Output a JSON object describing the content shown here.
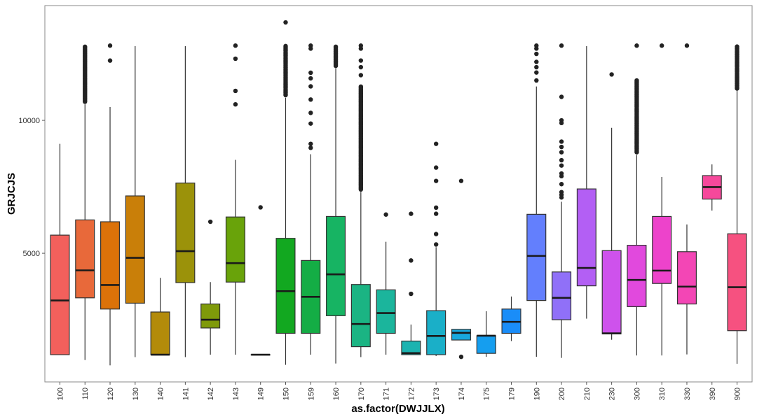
{
  "chart_data": {
    "type": "boxplot",
    "title": "",
    "xlabel": "as.factor(DWJJLX)",
    "ylabel": "GRJCJS",
    "ylim": [
      160,
      14317
    ],
    "yticks": [
      5000,
      10000
    ],
    "ytick_labels": [
      "5000",
      "10000"
    ],
    "grid": false,
    "legend": "none",
    "categories": [
      "100",
      "110",
      "120",
      "130",
      "140",
      "141",
      "142",
      "143",
      "149",
      "150",
      "159",
      "160",
      "170",
      "171",
      "172",
      "173",
      "174",
      "175",
      "179",
      "190",
      "200",
      "210",
      "230",
      "300",
      "310",
      "330",
      "390",
      "900"
    ],
    "colors": [
      "#F2605C",
      "#E8693A",
      "#DC7209",
      "#C97F09",
      "#B38B0A",
      "#9B920A",
      "#7F9A0A",
      "#69A30A",
      "#4DA80A",
      "#12A820",
      "#14AD45",
      "#17B463",
      "#1BB483",
      "#1BB59C",
      "#1CB3B0",
      "#1AAFC8",
      "#18A8DE",
      "#159EEF",
      "#1A8DF8",
      "#637FFD",
      "#9070F8",
      "#B35FF4",
      "#CE52EC",
      "#E149DD",
      "#ED43CB",
      "#F346B5",
      "#F6489B",
      "#F65180"
    ],
    "boxes": [
      {
        "low": 1185,
        "q1": 1185,
        "median": 3223,
        "q3": 5683,
        "high": 9116,
        "outliers": [],
        "outlier_ranges": []
      },
      {
        "low": 984,
        "q1": 3323,
        "median": 4357,
        "q3": 6255,
        "high": 10602,
        "outliers": [],
        "outlier_ranges": [
          [
            10700,
            12811
          ]
        ]
      },
      {
        "low": 783,
        "q1": 2902,
        "median": 3805,
        "q3": 6185,
        "high": 10502,
        "outliers": [
          12811,
          12248
        ],
        "outlier_ranges": []
      },
      {
        "low": 1094,
        "q1": 3122,
        "median": 4829,
        "q3": 7158,
        "high": 12791,
        "outliers": [],
        "outlier_ranges": []
      },
      {
        "low": 1185,
        "q1": 1185,
        "median": 1185,
        "q3": 2791,
        "high": 4076,
        "outliers": [],
        "outlier_ranges": []
      },
      {
        "low": 1094,
        "q1": 3896,
        "median": 5080,
        "q3": 7641,
        "high": 12791,
        "outliers": [],
        "outlier_ranges": []
      },
      {
        "low": 1185,
        "q1": 2189,
        "median": 2500,
        "q3": 3092,
        "high": 3916,
        "outliers": [
          6185
        ],
        "outlier_ranges": []
      },
      {
        "low": 1185,
        "q1": 3916,
        "median": 4628,
        "q3": 6365,
        "high": 8514,
        "outliers": [
          12811,
          12319,
          11108,
          10602
        ],
        "outlier_ranges": []
      },
      {
        "low": 1185,
        "q1": 1185,
        "median": 1185,
        "q3": 1185,
        "high": 1185,
        "outliers": [
          6727
        ],
        "outlier_ranges": []
      },
      {
        "low": 803,
        "q1": 1988,
        "median": 3574,
        "q3": 5562,
        "high": 10853,
        "outliers": [
          13685
        ],
        "outlier_ranges": [
          [
            10950,
            12811
          ]
        ]
      },
      {
        "low": 1185,
        "q1": 1988,
        "median": 3363,
        "q3": 4729,
        "high": 8725,
        "outliers": [
          12811,
          12700,
          11791,
          11580,
          11279,
          10783,
          10281,
          9879,
          9116,
          8966
        ],
        "outlier_ranges": []
      },
      {
        "low": 853,
        "q1": 2651,
        "median": 4207,
        "q3": 6385,
        "high": 11958,
        "outliers": [],
        "outlier_ranges": [
          [
            12050,
            12811
          ]
        ]
      },
      {
        "low": 1094,
        "q1": 1486,
        "median": 2339,
        "q3": 3825,
        "high": 7309,
        "outliers": [
          12811,
          12700,
          12250,
          12000,
          11700
        ],
        "outlier_ranges": [
          [
            7400,
            11300
          ]
        ]
      },
      {
        "low": 1185,
        "q1": 1988,
        "median": 2751,
        "q3": 3624,
        "high": 5432,
        "outliers": [
          6456
        ],
        "outlier_ranges": []
      },
      {
        "low": 1185,
        "q1": 1185,
        "median": 1245,
        "q3": 1697,
        "high": 2319,
        "outliers": [
          6486,
          4729,
          3474
        ],
        "outlier_ranges": []
      },
      {
        "low": 1135,
        "q1": 1185,
        "median": 1888,
        "q3": 2841,
        "high": 5231,
        "outliers": [
          9116,
          8223,
          7721,
          6717,
          6486,
          5723,
          5331
        ],
        "outlier_ranges": []
      },
      {
        "low": 1737,
        "q1": 1737,
        "median": 2008,
        "q3": 2139,
        "high": 2139,
        "outliers": [
          7721,
          1104
        ],
        "outlier_ranges": []
      },
      {
        "low": 1104,
        "q1": 1235,
        "median": 1898,
        "q3": 1898,
        "high": 2821,
        "outliers": [],
        "outlier_ranges": []
      },
      {
        "low": 1697,
        "q1": 1988,
        "median": 2420,
        "q3": 2902,
        "high": 3373,
        "outliers": [],
        "outlier_ranges": []
      },
      {
        "low": 1104,
        "q1": 3223,
        "median": 4900,
        "q3": 6466,
        "high": 11275,
        "outliers": [
          12811,
          12700,
          12500,
          12200,
          12000,
          11800,
          11500
        ],
        "outlier_ranges": []
      },
      {
        "low": 1064,
        "q1": 2500,
        "median": 3323,
        "q3": 4297,
        "high": 6938,
        "outliers": [
          12811,
          10883,
          10000,
          9900,
          9200,
          9000,
          8800,
          8500,
          8300,
          8000,
          7900,
          7600,
          7300,
          7200,
          7100
        ],
        "outlier_ranges": []
      },
      {
        "low": 2540,
        "q1": 3775,
        "median": 4448,
        "q3": 7420,
        "high": 12791,
        "outliers": [],
        "outlier_ranges": []
      },
      {
        "low": 1747,
        "q1": 1968,
        "median": 1988,
        "q3": 5100,
        "high": 9719,
        "outliers": [
          11727
        ],
        "outlier_ranges": []
      },
      {
        "low": 1155,
        "q1": 2992,
        "median": 3996,
        "q3": 5301,
        "high": 8695,
        "outliers": [
          12811
        ],
        "outlier_ranges": [
          [
            8800,
            11500
          ]
        ]
      },
      {
        "low": 1155,
        "q1": 3865,
        "median": 4347,
        "q3": 6385,
        "high": 7871,
        "outliers": [
          12811
        ],
        "outlier_ranges": []
      },
      {
        "low": 1195,
        "q1": 3092,
        "median": 3745,
        "q3": 5060,
        "high": 6084,
        "outliers": [
          12811
        ],
        "outlier_ranges": []
      },
      {
        "low": 6606,
        "q1": 7038,
        "median": 7490,
        "q3": 7922,
        "high": 8343,
        "outliers": [],
        "outlier_ranges": []
      },
      {
        "low": 843,
        "q1": 2088,
        "median": 3725,
        "q3": 5733,
        "high": 11154,
        "outliers": [],
        "outlier_ranges": [
          [
            11200,
            12811
          ]
        ]
      }
    ]
  }
}
